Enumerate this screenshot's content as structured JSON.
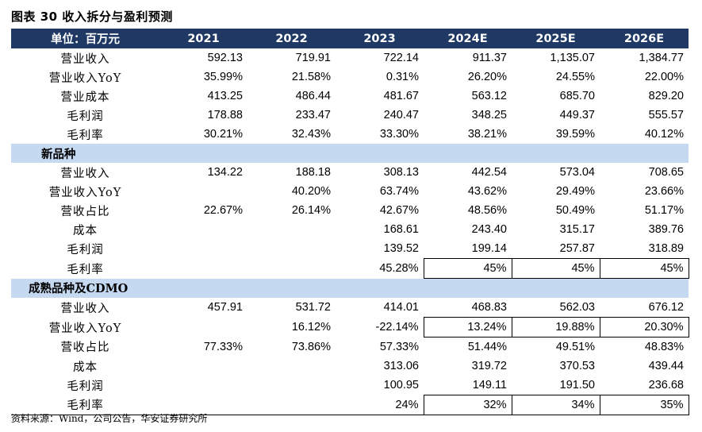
{
  "title": "图表 30 收入拆分与盈利预测",
  "header": [
    "单位：百万元",
    "2021",
    "2022",
    "2023",
    "2024E",
    "2025E",
    "2026E"
  ],
  "sections": [
    {
      "name": "",
      "rows": [
        {
          "label": "营业收入",
          "values": [
            "592.13",
            "719.91",
            "722.14",
            "911.37",
            "1,135.07",
            "1,384.77"
          ],
          "boxed": []
        },
        {
          "label": "营业收入YoY",
          "values": [
            "35.99%",
            "21.58%",
            "0.31%",
            "26.20%",
            "24.55%",
            "22.00%"
          ],
          "boxed": []
        },
        {
          "label": "营业成本",
          "values": [
            "413.25",
            "486.44",
            "481.67",
            "563.12",
            "685.70",
            "829.20"
          ],
          "boxed": []
        },
        {
          "label": "毛利润",
          "values": [
            "178.88",
            "233.47",
            "240.47",
            "348.25",
            "449.37",
            "555.57"
          ],
          "boxed": []
        },
        {
          "label": "毛利率",
          "values": [
            "30.21%",
            "32.43%",
            "33.30%",
            "38.21%",
            "39.59%",
            "40.12%"
          ],
          "boxed": []
        }
      ]
    },
    {
      "name": "新品种",
      "rows": [
        {
          "label": "营业收入",
          "values": [
            "134.22",
            "188.18",
            "308.13",
            "442.54",
            "573.04",
            "708.65"
          ],
          "boxed": []
        },
        {
          "label": "营业收入YoY",
          "values": [
            "",
            "40.20%",
            "63.74%",
            "43.62%",
            "29.49%",
            "23.66%"
          ],
          "boxed": []
        },
        {
          "label": "营收占比",
          "values": [
            "22.67%",
            "26.14%",
            "42.67%",
            "48.56%",
            "50.49%",
            "51.17%"
          ],
          "boxed": []
        },
        {
          "label": "成本",
          "values": [
            "",
            "",
            "168.61",
            "243.40",
            "315.17",
            "389.76"
          ],
          "boxed": []
        },
        {
          "label": "毛利润",
          "values": [
            "",
            "",
            "139.52",
            "199.14",
            "257.87",
            "318.89"
          ],
          "boxed": []
        },
        {
          "label": "毛利率",
          "values": [
            "",
            "",
            "45.28%",
            "45%",
            "45%",
            "45%"
          ],
          "boxed": [
            3,
            4,
            5
          ]
        }
      ]
    },
    {
      "name": "成熟品种及CDMO",
      "rows": [
        {
          "label": "营业收入",
          "values": [
            "457.91",
            "531.72",
            "414.01",
            "468.83",
            "562.03",
            "676.12"
          ],
          "boxed": []
        },
        {
          "label": "营业收入YoY",
          "values": [
            "",
            "16.12%",
            "-22.14%",
            "13.24%",
            "19.88%",
            "20.30%"
          ],
          "boxed": [
            3,
            4,
            5
          ]
        },
        {
          "label": "营收占比",
          "values": [
            "77.33%",
            "73.86%",
            "57.33%",
            "51.44%",
            "49.51%",
            "48.83%"
          ],
          "boxed": []
        },
        {
          "label": "成本",
          "values": [
            "",
            "",
            "313.06",
            "319.72",
            "370.53",
            "439.44"
          ],
          "boxed": []
        },
        {
          "label": "毛利润",
          "values": [
            "",
            "",
            "100.95",
            "149.11",
            "191.50",
            "236.68"
          ],
          "boxed": []
        },
        {
          "label": "毛利率",
          "values": [
            "",
            "",
            "24%",
            "32%",
            "34%",
            "35%"
          ],
          "boxed": [
            3,
            4,
            5
          ]
        }
      ]
    }
  ],
  "source": "资料来源：Wind，公司公告，华安证券研究所"
}
